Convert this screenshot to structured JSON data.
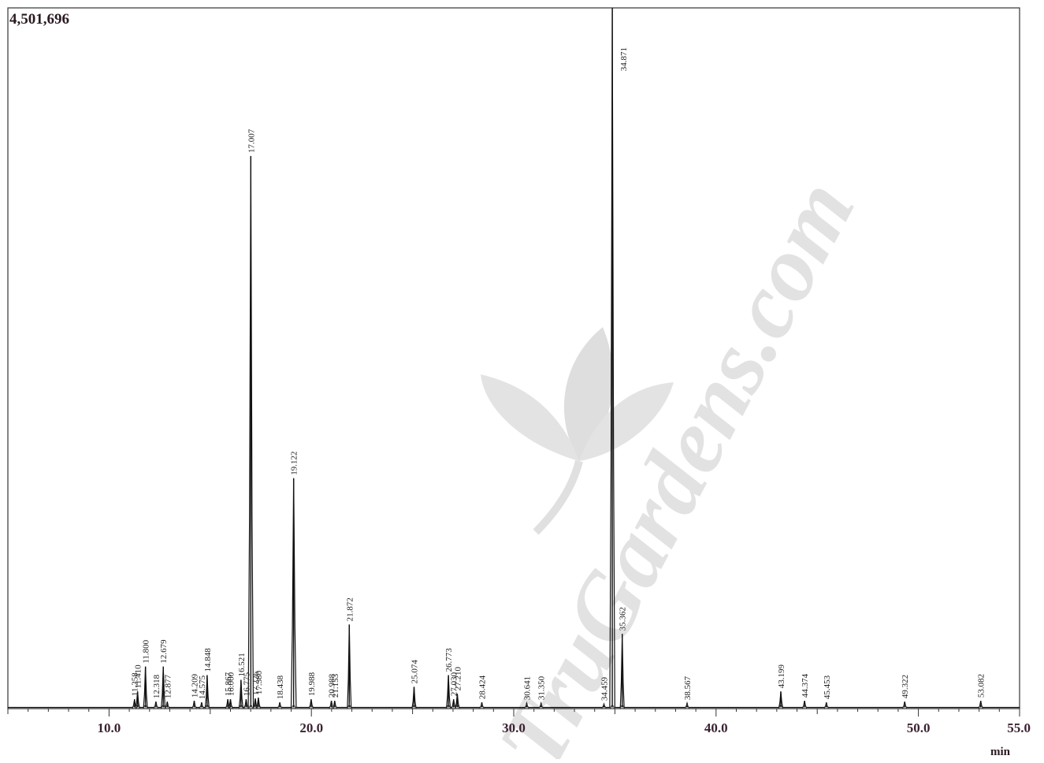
{
  "chart_data": {
    "type": "line",
    "title": "",
    "xlabel": "",
    "ylabel": "",
    "y_max_label": "4,501,696",
    "x_unit_label": "min",
    "xlim": [
      5.0,
      55.0
    ],
    "ylim": [
      0,
      4501696
    ],
    "x_ticks": [
      {
        "value": 10,
        "label": "10.0"
      },
      {
        "value": 20,
        "label": "20.0"
      },
      {
        "value": 30,
        "label": "30.0"
      },
      {
        "value": 40,
        "label": "40.0"
      },
      {
        "value": 50,
        "label": "50.0"
      },
      {
        "value": 55,
        "label": "55.0"
      }
    ],
    "grid": false,
    "line_color": "#111111",
    "watermark": "TruGardens.com",
    "peaks": [
      {
        "rt": 11.258,
        "label": "11.258",
        "height": 60000
      },
      {
        "rt": 11.41,
        "label": "11.410",
        "height": 110000
      },
      {
        "rt": 11.8,
        "label": "11.800",
        "height": 270000
      },
      {
        "rt": 12.318,
        "label": "12.318",
        "height": 45000
      },
      {
        "rt": 12.679,
        "label": "12.679",
        "height": 270000
      },
      {
        "rt": 12.877,
        "label": "12.877",
        "height": 45000
      },
      {
        "rt": 14.209,
        "label": "14.209",
        "height": 50000
      },
      {
        "rt": 14.575,
        "label": "14.575",
        "height": 40000
      },
      {
        "rt": 14.848,
        "label": "14.848",
        "height": 215000
      },
      {
        "rt": 15.867,
        "label": "15.867",
        "height": 60000
      },
      {
        "rt": 16.0,
        "label": "16.000",
        "height": 60000
      },
      {
        "rt": 16.521,
        "label": "16.521",
        "height": 185000
      },
      {
        "rt": 16.775,
        "label": "16.775",
        "height": 60000
      },
      {
        "rt": 17.007,
        "label": "17.007",
        "height": 3550000
      },
      {
        "rt": 17.226,
        "label": "17.226",
        "height": 65000
      },
      {
        "rt": 17.38,
        "label": "17.380",
        "height": 70000
      },
      {
        "rt": 18.438,
        "label": "18.438",
        "height": 40000
      },
      {
        "rt": 19.122,
        "label": "19.122",
        "height": 1480000
      },
      {
        "rt": 19.988,
        "label": "19.988",
        "height": 60000
      },
      {
        "rt": 20.988,
        "label": "20.988",
        "height": 50000
      },
      {
        "rt": 21.153,
        "label": "21.153",
        "height": 50000
      },
      {
        "rt": 21.872,
        "label": "21.872",
        "height": 540000
      },
      {
        "rt": 25.074,
        "label": "25.074",
        "height": 140000
      },
      {
        "rt": 26.773,
        "label": "26.773",
        "height": 215000
      },
      {
        "rt": 27.03,
        "label": "27.030",
        "height": 60000
      },
      {
        "rt": 27.21,
        "label": "27.210",
        "height": 95000
      },
      {
        "rt": 28.424,
        "label": "28.424",
        "height": 40000
      },
      {
        "rt": 30.641,
        "label": "30.641",
        "height": 35000
      },
      {
        "rt": 31.35,
        "label": "31.350",
        "height": 35000
      },
      {
        "rt": 34.459,
        "label": "34.459",
        "height": 30000
      },
      {
        "rt": 34.871,
        "label": "34.871",
        "height": 4501696
      },
      {
        "rt": 35.362,
        "label": "35.362",
        "height": 480000
      },
      {
        "rt": 38.567,
        "label": "38.567",
        "height": 35000
      },
      {
        "rt": 43.199,
        "label": "43.199",
        "height": 110000
      },
      {
        "rt": 44.374,
        "label": "44.374",
        "height": 50000
      },
      {
        "rt": 45.453,
        "label": "45.453",
        "height": 40000
      },
      {
        "rt": 49.322,
        "label": "49.322",
        "height": 45000
      },
      {
        "rt": 53.082,
        "label": "53.082",
        "height": 50000
      }
    ]
  }
}
